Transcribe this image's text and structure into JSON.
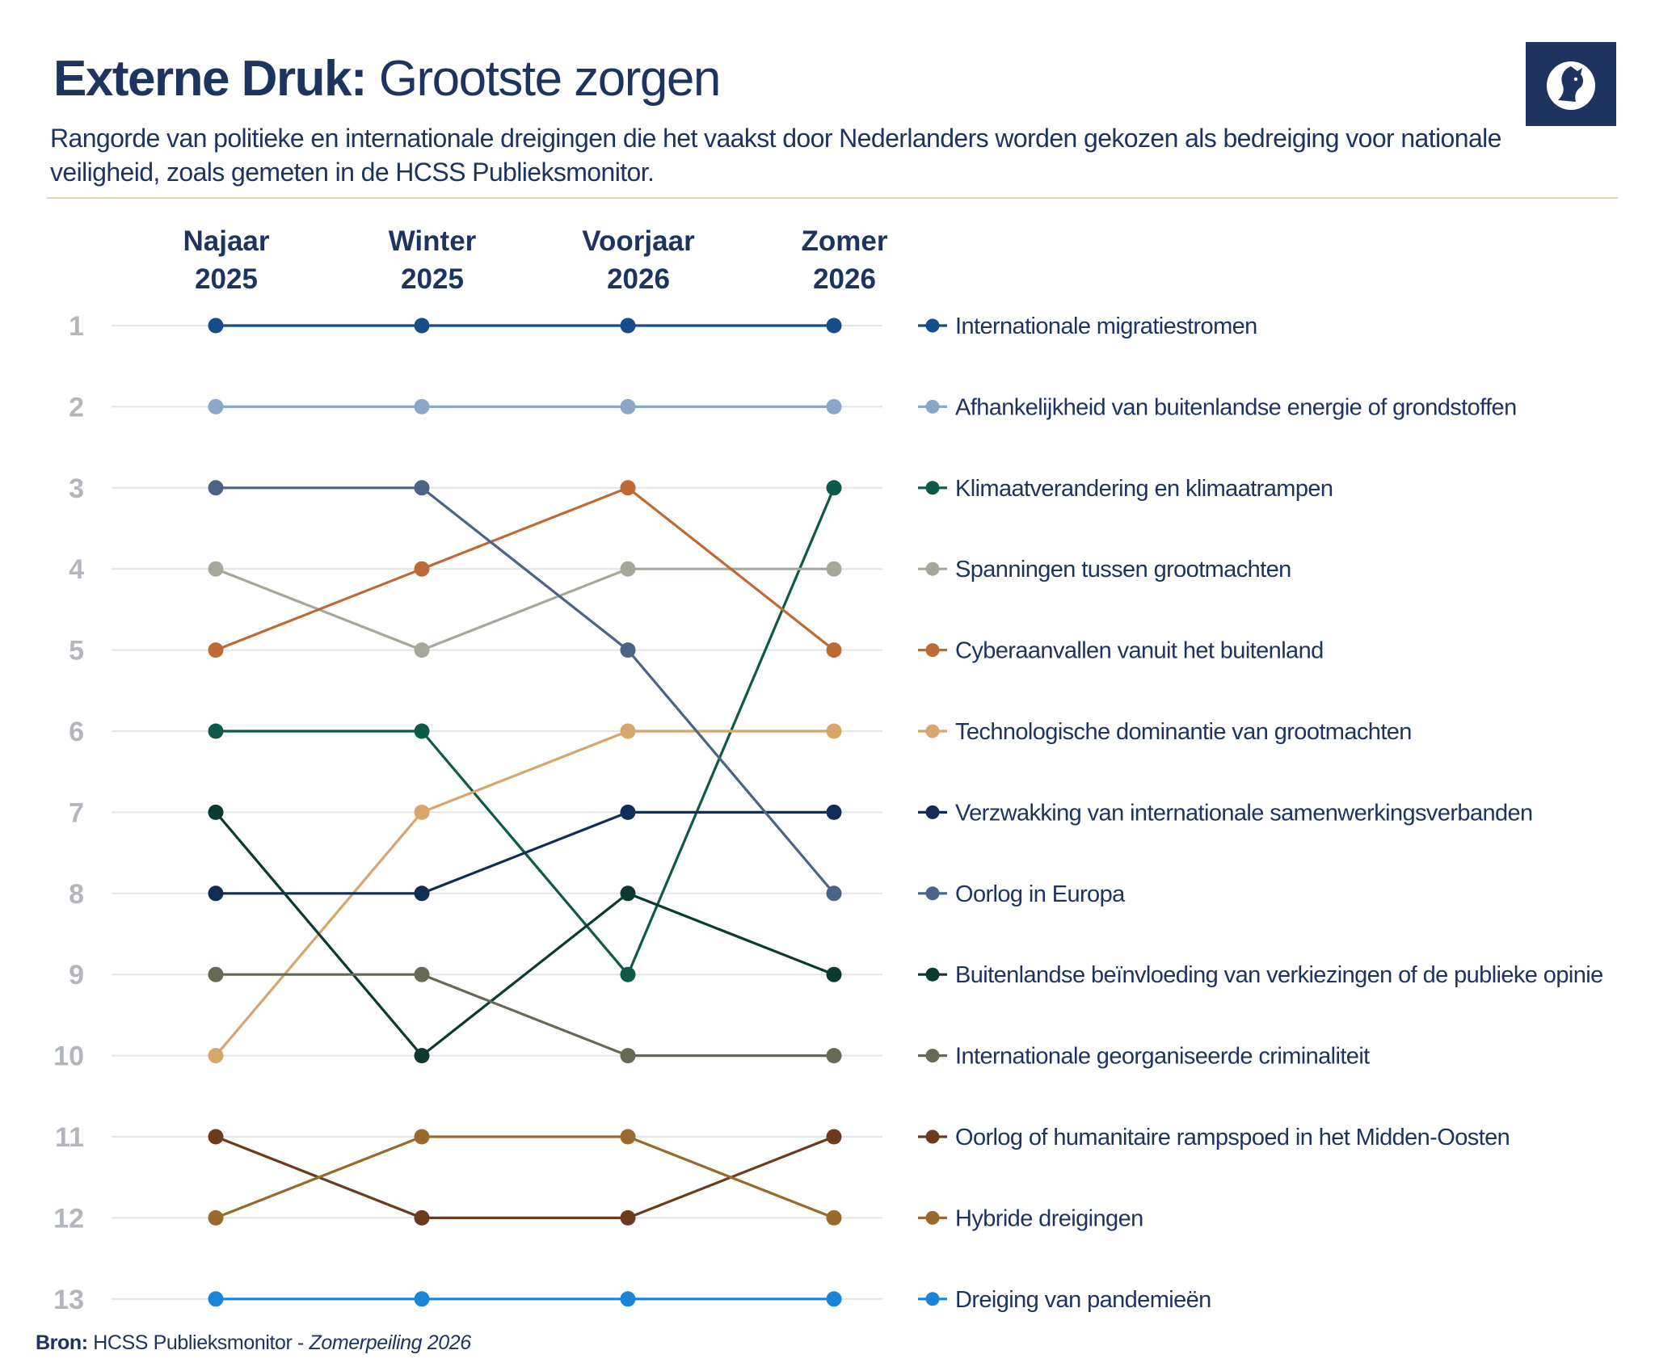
{
  "header": {
    "title_bold": "Externe Druk:",
    "title_light": "Grootste zorgen",
    "subtitle": "Rangorde van politieke en internationale dreigingen die het vaakst door Nederlanders worden gekozen als bedreiging voor nationale veiligheid, zoals gemeten in de HCSS Publieksmonitor."
  },
  "logo": {
    "icon": "hcss-horse-logo-icon",
    "color": "#1d3461"
  },
  "source": {
    "label": "Bron:",
    "text": "HCSS Publieksmonitor - ",
    "edition": "Zomerpeiling 2026"
  },
  "chart_data": {
    "type": "line",
    "subtype": "bump",
    "y_reversed": true,
    "ylim": [
      1,
      13
    ],
    "x": [
      "Najaar 2025",
      "Winter 2025",
      "Voorjaar 2026",
      "Zomer 2026"
    ],
    "x_labels": [
      [
        "Najaar",
        "2025"
      ],
      [
        "Winter",
        "2025"
      ],
      [
        "Voorjaar",
        "2026"
      ],
      [
        "Zomer",
        "2026"
      ]
    ],
    "rank_labels": [
      "1",
      "2",
      "3",
      "4",
      "5",
      "6",
      "7",
      "8",
      "9",
      "10",
      "11",
      "12",
      "13"
    ],
    "series": [
      {
        "name": "Internationale migratiestromen",
        "color": "#154c8a",
        "values": [
          1,
          1,
          1,
          1
        ]
      },
      {
        "name": "Afhankelijkheid van buitenlandse energie of grondstoffen",
        "color": "#8ba7c7",
        "values": [
          2,
          2,
          2,
          2
        ]
      },
      {
        "name": "Klimaatverandering en klimaatrampen",
        "color": "#0e5a4a",
        "values": [
          6,
          6,
          9,
          3
        ]
      },
      {
        "name": "Spanningen tussen grootmachten",
        "color": "#a4a99a",
        "values": [
          4,
          5,
          4,
          4
        ]
      },
      {
        "name": "Cyberaanvallen vanuit het buitenland",
        "color": "#bf6a35",
        "values": [
          5,
          4,
          3,
          5
        ]
      },
      {
        "name": "Technologische dominantie van grootmachten",
        "color": "#d8a56a",
        "values": [
          10,
          7,
          6,
          6
        ]
      },
      {
        "name": "Verzwakking van internationale samenwerkingsverbanden",
        "color": "#102e55",
        "values": [
          8,
          8,
          7,
          7
        ]
      },
      {
        "name": "Oorlog in Europa",
        "color": "#4b6486",
        "values": [
          3,
          3,
          5,
          8
        ]
      },
      {
        "name": "Buitenlandse beïnvloeding van verkiezingen of de publieke opinie",
        "color": "#0b3a30",
        "values": [
          7,
          10,
          8,
          9
        ]
      },
      {
        "name": "Internationale georganiseerde criminaliteit",
        "color": "#656a57",
        "values": [
          9,
          9,
          10,
          10
        ]
      },
      {
        "name": "Oorlog of humanitaire rampspoed in het Midden-Oosten",
        "color": "#6e3a1e",
        "values": [
          11,
          12,
          12,
          11
        ]
      },
      {
        "name": "Hybride dreigingen",
        "color": "#9a6a2c",
        "values": [
          12,
          11,
          11,
          12
        ]
      },
      {
        "name": "Dreiging van pandemieën",
        "color": "#1a84d6",
        "values": [
          13,
          13,
          13,
          13
        ]
      }
    ],
    "colors": {
      "gridline": "#e2e4e8",
      "rank_label": "#b3b7bd",
      "column_header": "#1d3461"
    },
    "grid": true,
    "legend": "right"
  }
}
